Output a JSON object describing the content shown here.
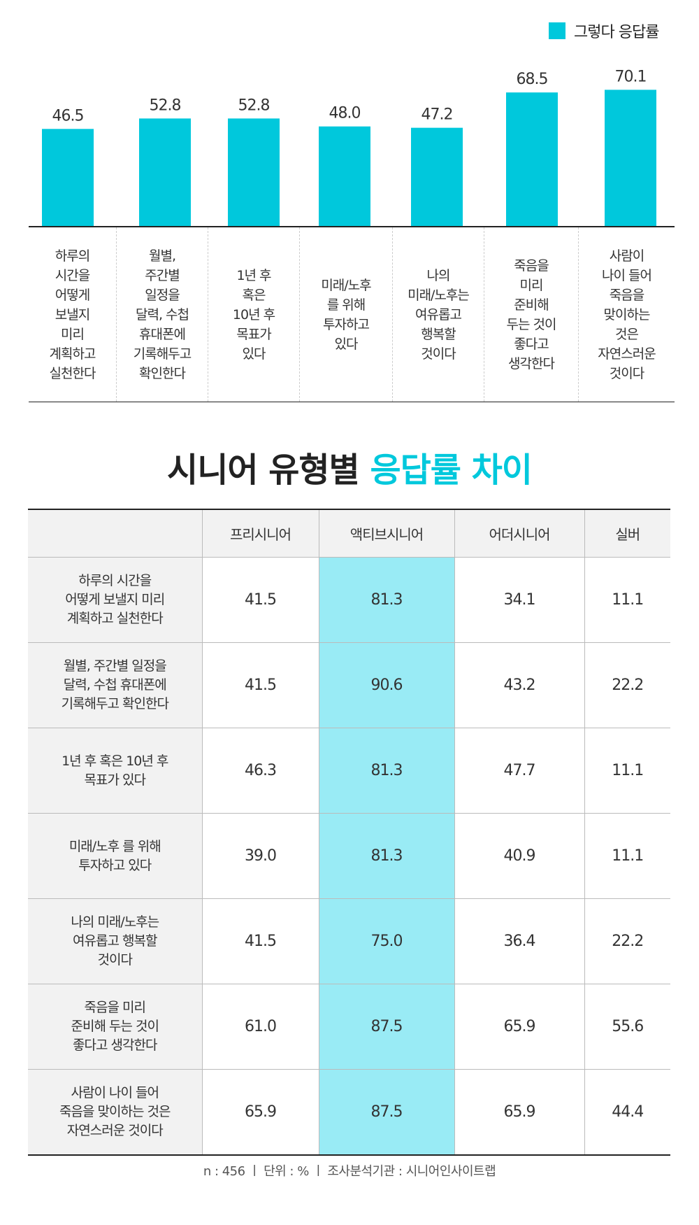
{
  "colors": {
    "accent": "#00c8dc",
    "highlight": "#99ebf5",
    "header_bg": "#f2f2f2"
  },
  "chart_data": {
    "type": "bar",
    "legend": [
      "그렇다 응답률"
    ],
    "legend_position": "top-right",
    "categories": [
      "하루의\n시간을\n어떻게\n보낼지\n미리\n계획하고\n실천한다",
      "월별,\n주간별\n일정을\n달력, 수첩\n휴대폰에\n기록해두고\n확인한다",
      "1년 후\n혹은\n10년 후\n목표가\n있다",
      "미래/노후\n를 위해\n투자하고\n있다",
      "나의\n미래/노후는\n여유롭고\n행복할\n것이다",
      "죽음을\n미리\n준비해\n두는 것이\n좋다고\n생각한다",
      "사람이\n나이 들어\n죽음을\n맞이하는\n것은\n자연스러운\n것이다"
    ],
    "values": [
      46.5,
      52.8,
      52.8,
      48.0,
      47.2,
      68.5,
      70.1
    ],
    "value_labels": [
      "46.5",
      "52.8",
      "52.8",
      "48.0",
      "47.2",
      "68.5",
      "70.1"
    ],
    "grid": false
  },
  "title": {
    "main": "시니어 유형별 ",
    "accent": "응답률 차이"
  },
  "table": {
    "headers": [
      "",
      "프리시니어",
      "액티브시니어",
      "어더시니어",
      "실버"
    ],
    "rows": [
      {
        "label": "하루의 시간을\n어떻게 보낼지 미리\n계획하고 실천한다",
        "values": [
          "41.5",
          "81.3",
          "34.1",
          "11.1"
        ]
      },
      {
        "label": "월별, 주간별 일정을\n달력, 수첩 휴대폰에\n기록해두고 확인한다",
        "values": [
          "41.5",
          "90.6",
          "43.2",
          "22.2"
        ]
      },
      {
        "label": "1년 후 혹은 10년 후\n목표가 있다",
        "values": [
          "46.3",
          "81.3",
          "47.7",
          "11.1"
        ]
      },
      {
        "label": "미래/노후 를 위해\n투자하고 있다",
        "values": [
          "39.0",
          "81.3",
          "40.9",
          "11.1"
        ]
      },
      {
        "label": "나의 미래/노후는\n여유롭고 행복할\n것이다",
        "values": [
          "41.5",
          "75.0",
          "36.4",
          "22.2"
        ]
      },
      {
        "label": "죽음을 미리\n준비해 두는 것이\n좋다고 생각한다",
        "values": [
          "61.0",
          "87.5",
          "65.9",
          "55.6"
        ]
      },
      {
        "label": "사람이 나이 들어\n죽음을 맞이하는 것은\n자연스러운 것이다",
        "values": [
          "65.9",
          "87.5",
          "65.9",
          "44.4"
        ]
      }
    ]
  },
  "footer": "n : 456  ㅣ  단위 : %  ㅣ  조사분석기관 : 시니어인사이트랩"
}
